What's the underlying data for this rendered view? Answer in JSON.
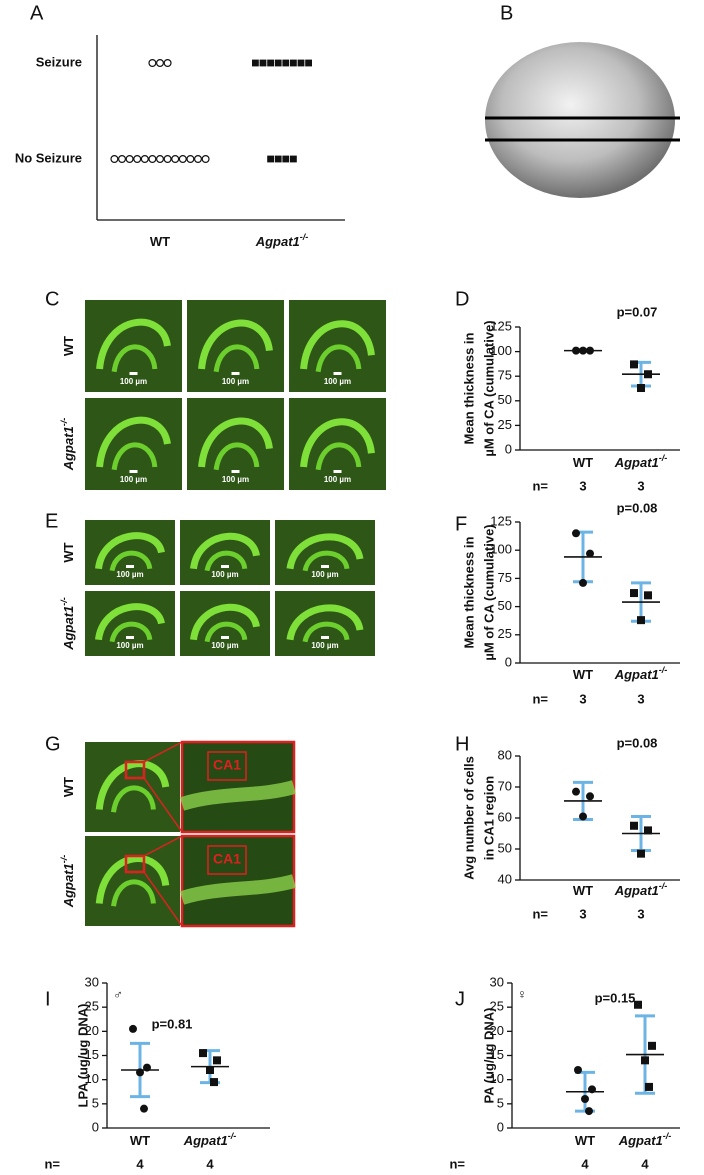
{
  "chart_data": [
    {
      "type": "dotcount",
      "panel": "A",
      "rows": [
        "Seizure",
        "No Seizure"
      ],
      "groups": [
        {
          "name": "WT",
          "marker": "open-circle",
          "counts": [
            3,
            13
          ]
        },
        {
          "name": "Agpat1",
          "superscript": "-/-",
          "marker": "square",
          "counts": [
            8,
            4
          ]
        }
      ]
    },
    {
      "type": "dotplot",
      "panel": "D",
      "ylabel": [
        "Mean thickness in",
        "µM of CA  (cumulative)"
      ],
      "annotation": "p=0.07",
      "ylim": [
        0,
        125
      ],
      "yticks": [
        0,
        25,
        50,
        75,
        100,
        125
      ],
      "n_label": "n=",
      "errorbar_color": "#6cb4e4",
      "groups": [
        {
          "name": "WT",
          "marker": "circle",
          "n": 3,
          "values": [
            101,
            101,
            101
          ],
          "mean": 101,
          "sd": 1
        },
        {
          "name": "Agpat1",
          "superscript": "-/-",
          "marker": "square",
          "n": 3,
          "values": [
            87,
            77,
            63
          ],
          "mean": 77,
          "sd": 12
        }
      ]
    },
    {
      "type": "dotplot",
      "panel": "F",
      "ylabel": [
        "Mean thickness in",
        "µM of CA  (cumulative)"
      ],
      "annotation": "p=0.08",
      "ylim": [
        0,
        125
      ],
      "yticks": [
        0,
        25,
        50,
        75,
        100,
        125
      ],
      "n_label": "n=",
      "errorbar_color": "#6cb4e4",
      "groups": [
        {
          "name": "WT",
          "marker": "circle",
          "n": 3,
          "values": [
            115,
            97,
            71
          ],
          "mean": 94,
          "sd": 22
        },
        {
          "name": "Agpat1",
          "superscript": "-/-",
          "marker": "square",
          "n": 3,
          "values": [
            62,
            60,
            38
          ],
          "mean": 54,
          "sd": 17
        }
      ]
    },
    {
      "type": "dotplot",
      "panel": "H",
      "ylabel": [
        "Avg number of cells",
        "in CA1 region"
      ],
      "annotation": "p=0.08",
      "ylim": [
        40,
        80
      ],
      "yticks": [
        40,
        50,
        60,
        70,
        80
      ],
      "n_label": "n=",
      "errorbar_color": "#6cb4e4",
      "groups": [
        {
          "name": "WT",
          "marker": "circle",
          "n": 3,
          "values": [
            68.5,
            67,
            60.5
          ],
          "mean": 65.5,
          "sd": 6
        },
        {
          "name": "Agpat1",
          "superscript": "-/-",
          "marker": "square",
          "n": 3,
          "values": [
            57.5,
            56,
            48.5
          ],
          "mean": 55,
          "sd": 5.5
        }
      ]
    },
    {
      "type": "dotplot",
      "panel": "I",
      "symbol": "♂",
      "ylabel": [
        "LPA (ug/ug DNA)"
      ],
      "annotation": "p=0.81",
      "ylim": [
        0,
        30
      ],
      "yticks": [
        0,
        5,
        10,
        15,
        20,
        25,
        30
      ],
      "n_label": "n=",
      "errorbar_color": "#6cb4e4",
      "groups": [
        {
          "name": "WT",
          "marker": "circle",
          "n": 4,
          "values": [
            20.5,
            12.5,
            11.5,
            4
          ],
          "mean": 12,
          "sd": 5.5
        },
        {
          "name": "Agpat1",
          "superscript": "-/-",
          "marker": "square",
          "n": 4,
          "values": [
            15.5,
            14,
            12,
            9.5
          ],
          "mean": 12.7,
          "sd": 3.3
        }
      ]
    },
    {
      "type": "dotplot",
      "panel": "J",
      "symbol": "♀",
      "ylabel": [
        "PA (ug/ug DNA)"
      ],
      "annotation": "p=0.15",
      "ylim": [
        0,
        30
      ],
      "yticks": [
        0,
        5,
        10,
        15,
        20,
        25,
        30
      ],
      "n_label": "n=",
      "errorbar_color": "#6cb4e4",
      "groups": [
        {
          "name": "WT",
          "marker": "circle",
          "n": 4,
          "values": [
            12,
            8,
            6,
            3.5
          ],
          "mean": 7.5,
          "sd": 4
        },
        {
          "name": "Agpat1",
          "superscript": "-/-",
          "marker": "square",
          "n": 4,
          "values": [
            25.5,
            17,
            14,
            8.5
          ],
          "mean": 15.2,
          "sd": 8
        }
      ]
    }
  ],
  "image_panels": [
    {
      "panel": "B"
    },
    {
      "panel": "C",
      "rows": [
        {
          "name": "WT"
        },
        {
          "name": "Agpat1",
          "superscript": "-/-"
        }
      ],
      "scale_bar": "100 µm"
    },
    {
      "panel": "E",
      "rows": [
        {
          "name": "WT"
        },
        {
          "name": "Agpat1",
          "superscript": "-/-"
        }
      ],
      "scale_bar": "100 µm"
    },
    {
      "panel": "G",
      "rows": [
        {
          "name": "WT"
        },
        {
          "name": "Agpat1",
          "superscript": "-/-"
        }
      ],
      "region": "CA1"
    }
  ]
}
